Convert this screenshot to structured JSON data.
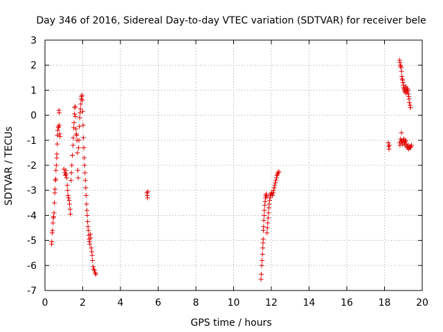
{
  "chart_data": {
    "type": "scatter",
    "title": "Day 346 of 2016, Sidereal Day-to-day VTEC variation (SDTVAR) for receiver bele",
    "xlabel": "GPS time / hours",
    "ylabel": "SDTVAR / TECUs",
    "xlim": [
      0,
      20
    ],
    "ylim": [
      -7,
      3
    ],
    "xticks": [
      0,
      2,
      4,
      6,
      8,
      10,
      12,
      14,
      16,
      18,
      20
    ],
    "yticks": [
      -7,
      -6,
      -5,
      -4,
      -3,
      -2,
      -1,
      0,
      1,
      2,
      3
    ],
    "grid": true,
    "marker": "plus",
    "color": "#e00000",
    "series": [
      {
        "name": "SDTVAR",
        "points": [
          [
            0.35,
            -5.15
          ],
          [
            0.36,
            -5.05
          ],
          [
            0.38,
            -4.7
          ],
          [
            0.4,
            -4.6
          ],
          [
            0.42,
            -4.3
          ],
          [
            0.44,
            -4.1
          ],
          [
            0.46,
            -4.05
          ],
          [
            0.48,
            -3.9
          ],
          [
            0.5,
            -3.5
          ],
          [
            0.52,
            -3.1
          ],
          [
            0.53,
            -2.95
          ],
          [
            0.55,
            -2.6
          ],
          [
            0.57,
            -2.55
          ],
          [
            0.58,
            -2.2
          ],
          [
            0.6,
            -2.0
          ],
          [
            0.62,
            -1.7
          ],
          [
            0.63,
            -1.55
          ],
          [
            0.65,
            -1.15
          ],
          [
            0.66,
            -0.8
          ],
          [
            0.68,
            -0.6
          ],
          [
            0.7,
            -0.45
          ],
          [
            0.72,
            -0.5
          ],
          [
            0.74,
            0.2
          ],
          [
            0.75,
            0.1
          ],
          [
            0.76,
            -0.4
          ],
          [
            0.78,
            -0.75
          ],
          [
            0.8,
            -0.85
          ],
          [
            1.0,
            -2.15
          ],
          [
            1.05,
            -2.3
          ],
          [
            1.08,
            -2.4
          ],
          [
            1.1,
            -2.2
          ],
          [
            1.12,
            -2.35
          ],
          [
            1.15,
            -2.5
          ],
          [
            1.18,
            -2.8
          ],
          [
            1.2,
            -3.0
          ],
          [
            1.22,
            -3.2
          ],
          [
            1.25,
            -3.3
          ],
          [
            1.28,
            -3.4
          ],
          [
            1.3,
            -3.55
          ],
          [
            1.33,
            -3.75
          ],
          [
            1.35,
            -3.95
          ],
          [
            1.38,
            -2.6
          ],
          [
            1.4,
            -2.3
          ],
          [
            1.42,
            -2.0
          ],
          [
            1.45,
            -1.6
          ],
          [
            1.48,
            -1.2
          ],
          [
            1.5,
            -0.9
          ],
          [
            1.52,
            -0.5
          ],
          [
            1.54,
            -0.3
          ],
          [
            1.56,
            0.05
          ],
          [
            1.58,
            0.3
          ],
          [
            1.6,
            0.35
          ],
          [
            1.62,
            -0.05
          ],
          [
            1.64,
            -0.55
          ],
          [
            1.66,
            -0.75
          ],
          [
            1.68,
            -0.8
          ],
          [
            1.7,
            -1.0
          ],
          [
            1.72,
            -1.5
          ],
          [
            1.74,
            -2.2
          ],
          [
            1.76,
            -2.5
          ],
          [
            1.78,
            -1.3
          ],
          [
            1.8,
            -1.0
          ],
          [
            1.82,
            -0.45
          ],
          [
            1.84,
            -0.1
          ],
          [
            1.86,
            0.1
          ],
          [
            1.88,
            0.25
          ],
          [
            1.9,
            0.45
          ],
          [
            1.92,
            0.65
          ],
          [
            1.94,
            0.75
          ],
          [
            1.96,
            0.8
          ],
          [
            1.98,
            0.6
          ],
          [
            2.0,
            0.15
          ],
          [
            2.02,
            -0.4
          ],
          [
            2.04,
            -0.9
          ],
          [
            2.06,
            -1.3
          ],
          [
            2.08,
            -1.7
          ],
          [
            2.1,
            -2.0
          ],
          [
            2.12,
            -2.3
          ],
          [
            2.14,
            -2.6
          ],
          [
            2.16,
            -2.9
          ],
          [
            2.18,
            -3.2
          ],
          [
            2.2,
            -3.55
          ],
          [
            2.22,
            -3.8
          ],
          [
            2.24,
            -4.0
          ],
          [
            2.26,
            -4.25
          ],
          [
            2.28,
            -4.45
          ],
          [
            2.3,
            -4.6
          ],
          [
            2.32,
            -4.8
          ],
          [
            2.34,
            -4.95
          ],
          [
            2.36,
            -5.05
          ],
          [
            2.38,
            -5.15
          ],
          [
            2.4,
            -4.75
          ],
          [
            2.42,
            -4.9
          ],
          [
            2.45,
            -5.3
          ],
          [
            2.48,
            -5.45
          ],
          [
            2.5,
            -5.6
          ],
          [
            2.52,
            -5.8
          ],
          [
            2.55,
            -6.05
          ],
          [
            2.58,
            -6.15
          ],
          [
            2.62,
            -6.2
          ],
          [
            2.66,
            -6.3
          ],
          [
            2.7,
            -6.35
          ],
          [
            5.4,
            -3.1
          ],
          [
            5.42,
            -3.2
          ],
          [
            5.44,
            -3.3
          ],
          [
            5.46,
            -3.05
          ],
          [
            11.45,
            -6.55
          ],
          [
            11.47,
            -6.35
          ],
          [
            11.49,
            -6.0
          ],
          [
            11.51,
            -5.8
          ],
          [
            11.53,
            -5.55
          ],
          [
            11.55,
            -5.3
          ],
          [
            11.56,
            -5.1
          ],
          [
            11.57,
            -4.95
          ],
          [
            11.58,
            -4.6
          ],
          [
            11.59,
            -4.45
          ],
          [
            11.6,
            -4.2
          ],
          [
            11.62,
            -4.0
          ],
          [
            11.63,
            -3.8
          ],
          [
            11.65,
            -3.6
          ],
          [
            11.67,
            -3.45
          ],
          [
            11.69,
            -3.3
          ],
          [
            11.71,
            -3.2
          ],
          [
            11.73,
            -3.15
          ],
          [
            11.75,
            -3.25
          ],
          [
            11.77,
            -4.7
          ],
          [
            11.79,
            -4.5
          ],
          [
            11.81,
            -4.3
          ],
          [
            11.83,
            -4.1
          ],
          [
            11.85,
            -3.9
          ],
          [
            11.87,
            -3.7
          ],
          [
            11.89,
            -3.55
          ],
          [
            11.91,
            -3.4
          ],
          [
            11.93,
            -3.3
          ],
          [
            11.95,
            -3.2
          ],
          [
            11.98,
            -3.15
          ],
          [
            12.0,
            -3.1
          ],
          [
            12.03,
            -3.15
          ],
          [
            12.06,
            -3.2
          ],
          [
            12.09,
            -3.1
          ],
          [
            12.12,
            -3.0
          ],
          [
            12.15,
            -2.9
          ],
          [
            12.18,
            -2.8
          ],
          [
            12.21,
            -2.7
          ],
          [
            12.24,
            -2.6
          ],
          [
            12.27,
            -2.5
          ],
          [
            12.3,
            -2.4
          ],
          [
            12.33,
            -2.35
          ],
          [
            12.36,
            -2.3
          ],
          [
            12.4,
            -2.25
          ],
          [
            18.2,
            -1.1
          ],
          [
            18.22,
            -1.25
          ],
          [
            18.24,
            -1.35
          ],
          [
            18.26,
            -1.2
          ],
          [
            18.8,
            2.2
          ],
          [
            18.82,
            2.1
          ],
          [
            18.84,
            2.0
          ],
          [
            18.86,
            1.95
          ],
          [
            18.88,
            1.9
          ],
          [
            18.9,
            1.75
          ],
          [
            18.92,
            1.55
          ],
          [
            18.94,
            1.45
          ],
          [
            18.96,
            1.4
          ],
          [
            18.98,
            1.3
          ],
          [
            19.0,
            1.2
          ],
          [
            19.02,
            1.1
          ],
          [
            19.04,
            1.05
          ],
          [
            19.06,
            1.0
          ],
          [
            19.08,
            0.95
          ],
          [
            19.1,
            0.9
          ],
          [
            19.12,
            1.15
          ],
          [
            19.14,
            1.1
          ],
          [
            19.16,
            1.0
          ],
          [
            19.18,
            0.9
          ],
          [
            19.2,
            0.95
          ],
          [
            19.22,
            1.05
          ],
          [
            19.24,
            1.0
          ],
          [
            19.26,
            0.85
          ],
          [
            19.28,
            0.75
          ],
          [
            19.3,
            0.65
          ],
          [
            19.32,
            0.5
          ],
          [
            19.35,
            0.4
          ],
          [
            19.38,
            0.3
          ],
          [
            18.8,
            -1.1
          ],
          [
            18.82,
            -1.2
          ],
          [
            18.85,
            -0.95
          ],
          [
            18.88,
            -1.05
          ],
          [
            18.9,
            -0.7
          ],
          [
            18.92,
            -1.0
          ],
          [
            18.95,
            -1.15
          ],
          [
            18.98,
            -1.05
          ],
          [
            19.0,
            -1.0
          ],
          [
            19.03,
            -0.95
          ],
          [
            19.05,
            -1.1
          ],
          [
            19.08,
            -1.2
          ],
          [
            19.1,
            -1.05
          ],
          [
            19.13,
            -1.0
          ],
          [
            19.16,
            -1.15
          ],
          [
            19.19,
            -1.25
          ],
          [
            19.22,
            -1.3
          ],
          [
            19.25,
            -1.2
          ],
          [
            19.28,
            -1.35
          ],
          [
            19.31,
            -1.3
          ],
          [
            19.34,
            -1.25
          ],
          [
            19.37,
            -1.3
          ],
          [
            19.4,
            -1.25
          ],
          [
            19.43,
            -1.2
          ]
        ]
      }
    ]
  }
}
